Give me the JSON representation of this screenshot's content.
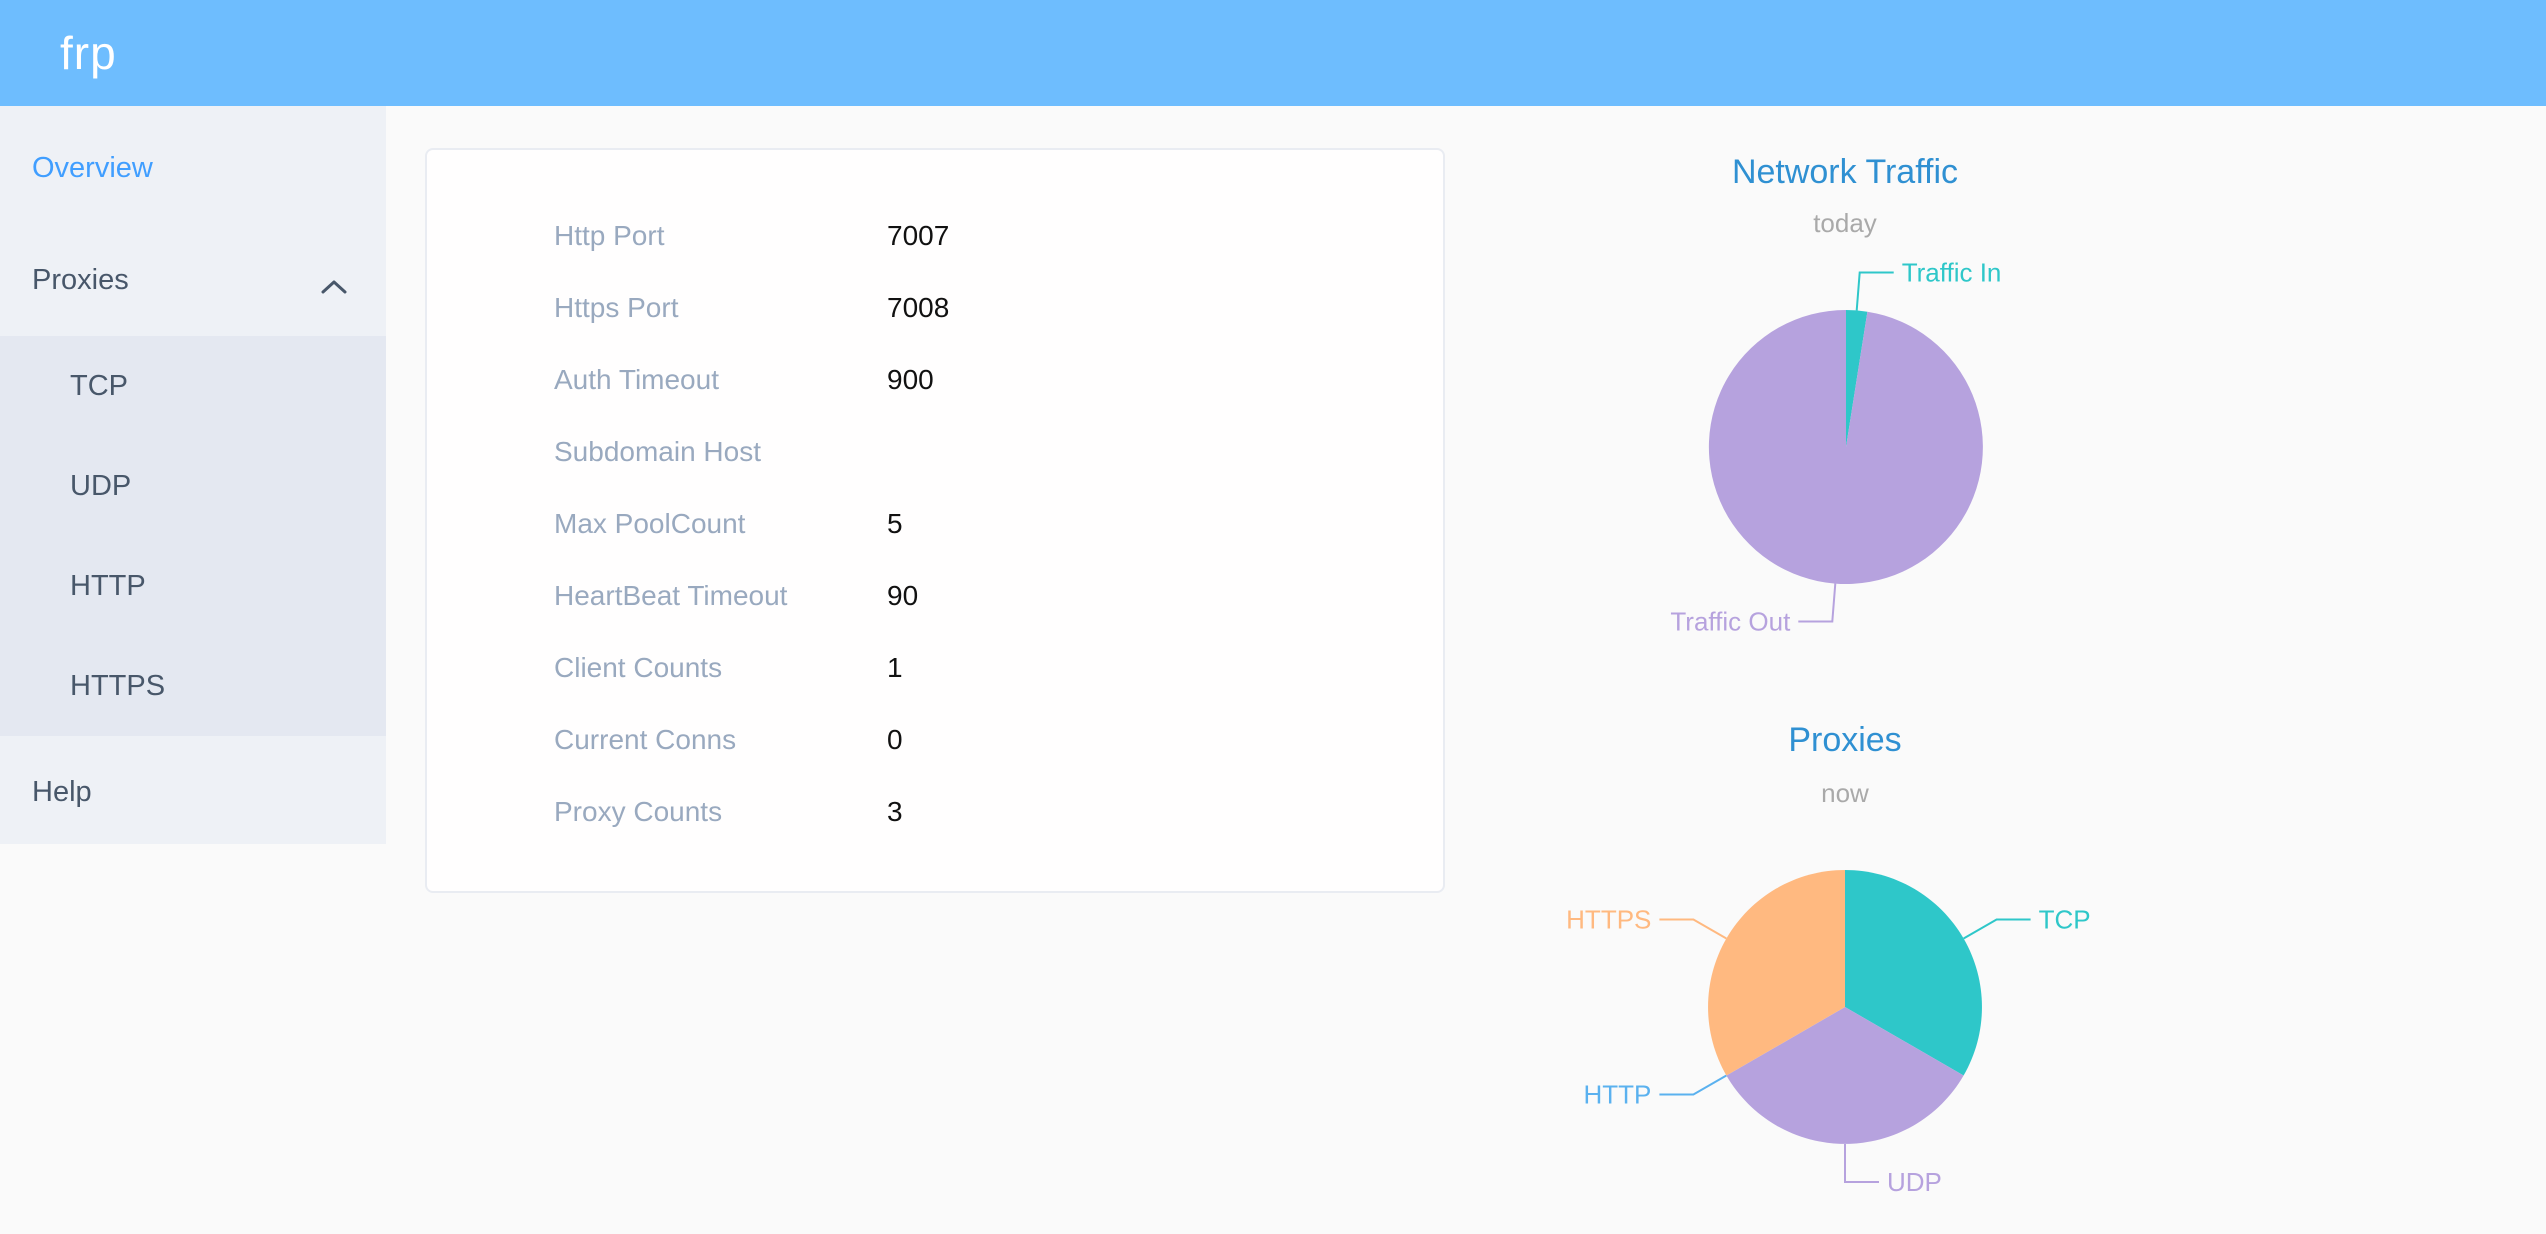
{
  "app": {
    "logo": "frp"
  },
  "sidebar": {
    "items": [
      {
        "label": "Overview",
        "active": true
      },
      {
        "label": "Proxies",
        "expanded": true,
        "children": [
          "TCP",
          "UDP",
          "HTTP",
          "HTTPS"
        ]
      },
      {
        "label": "Help"
      }
    ]
  },
  "card": {
    "rows": [
      {
        "label": "Http Port",
        "value": "7007"
      },
      {
        "label": "Https Port",
        "value": "7008"
      },
      {
        "label": "Auth Timeout",
        "value": "900"
      },
      {
        "label": "Subdomain Host",
        "value": ""
      },
      {
        "label": "Max PoolCount",
        "value": "5"
      },
      {
        "label": "HeartBeat Timeout",
        "value": "90"
      },
      {
        "label": "Client Counts",
        "value": "1"
      },
      {
        "label": "Current Conns",
        "value": "0"
      },
      {
        "label": "Proxy Counts",
        "value": "3"
      }
    ]
  },
  "colors": {
    "header_bg": "#6ebdfe",
    "sidebar_bg": "#eef1f6",
    "submenu_bg": "#e4e8f1",
    "menu_text": "#48576a",
    "menu_active": "#409eff",
    "card_label": "#99a9bf",
    "card_value": "#111111",
    "chart_title_blue": "#2f90d2",
    "chart_subtitle_gray": "#a9a9a9",
    "palette": [
      "#2ec7c9",
      "#b6a2de",
      "#5ab1ef",
      "#ffb980"
    ]
  },
  "chart_data": [
    {
      "type": "pie",
      "title": "Network Traffic",
      "subtitle": "today",
      "start_angle_deg": 90,
      "clockwise": true,
      "labels": "outside-with-leader-lines",
      "series": [
        {
          "name": "Traffic In",
          "percent": 2.5,
          "color": "#2ec7c9"
        },
        {
          "name": "Traffic Out",
          "percent": 97.5,
          "color": "#b6a2de"
        }
      ]
    },
    {
      "type": "pie",
      "title": "Proxies",
      "subtitle": "now",
      "start_angle_deg": 90,
      "clockwise": true,
      "labels": "outside-with-leader-lines",
      "series": [
        {
          "name": "TCP",
          "value": 1,
          "color": "#2ec7c9"
        },
        {
          "name": "UDP",
          "value": 1,
          "color": "#b6a2de"
        },
        {
          "name": "HTTP",
          "value": 0,
          "color": "#5ab1ef"
        },
        {
          "name": "HTTPS",
          "value": 1,
          "color": "#ffb980"
        }
      ]
    }
  ]
}
